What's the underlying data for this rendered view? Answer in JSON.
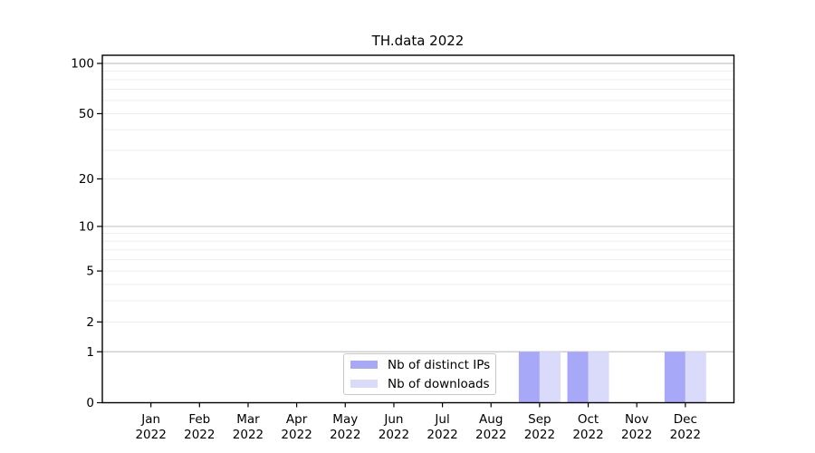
{
  "chart_data": {
    "type": "bar",
    "title": "TH.data 2022",
    "categories": [
      "Jan",
      "Feb",
      "Mar",
      "Apr",
      "May",
      "Jun",
      "Jul",
      "Aug",
      "Sep",
      "Oct",
      "Nov",
      "Dec"
    ],
    "x_tick_sublabel": "2022",
    "series": [
      {
        "name": "Nb of distinct IPs",
        "color": "#a8a8f8",
        "values": [
          0,
          0,
          0,
          0,
          0,
          0,
          0,
          0,
          1,
          1,
          0,
          1
        ]
      },
      {
        "name": "Nb of downloads",
        "color": "#dadafa",
        "values": [
          0,
          0,
          0,
          0,
          0,
          0,
          0,
          0,
          1,
          1,
          0,
          1
        ]
      }
    ],
    "yticks": [
      0,
      1,
      2,
      5,
      10,
      20,
      50,
      100
    ],
    "ylim": [
      0,
      100
    ],
    "yscale": "log10(value+1)",
    "grid": {
      "major_values": [
        1,
        10,
        100
      ],
      "minor_values": [
        2,
        3,
        4,
        5,
        6,
        7,
        8,
        9,
        20,
        30,
        40,
        50,
        60,
        70,
        80,
        90
      ],
      "major_color": "#c6c6c6",
      "minor_color": "#ededed"
    },
    "legend_position": "bottom-center",
    "axis_color": "#000000",
    "text_color": "#000000",
    "background": "#ffffff"
  }
}
